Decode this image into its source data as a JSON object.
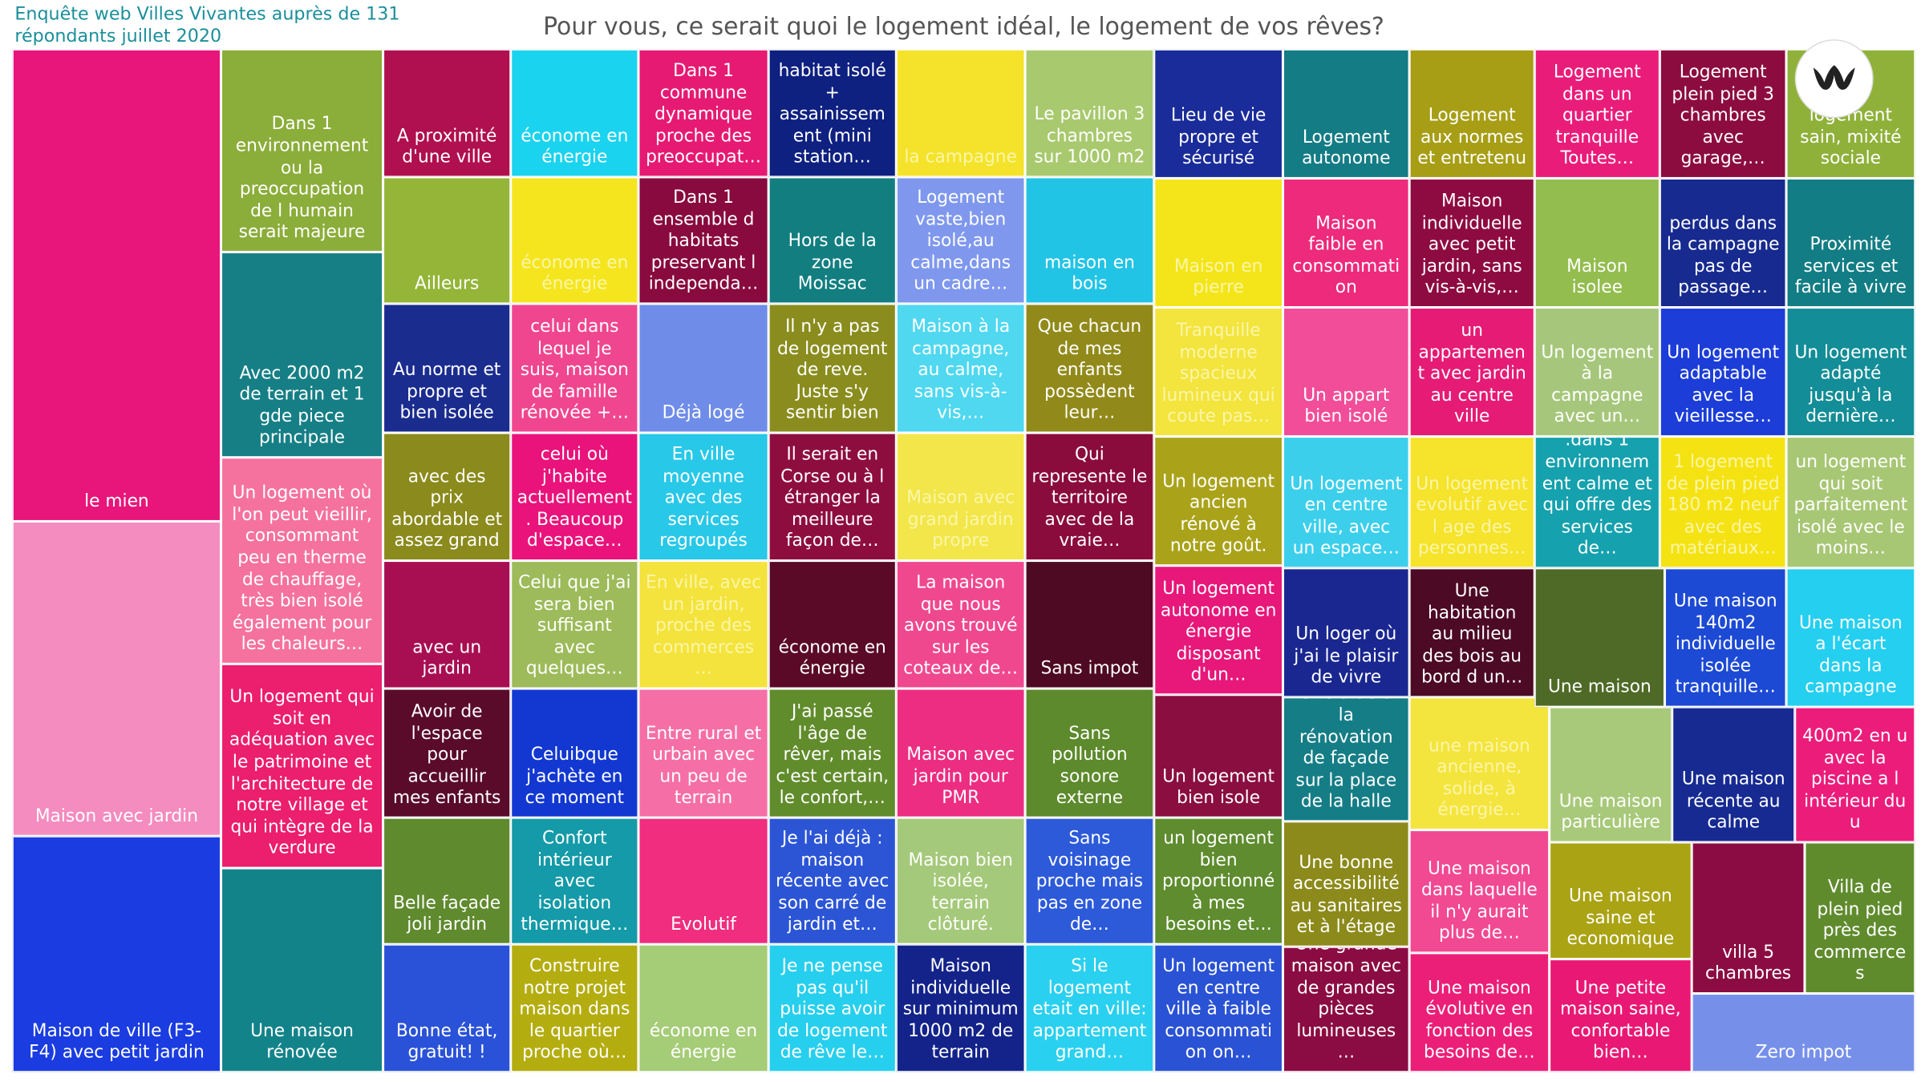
{
  "header": {
    "source": [
      "Enquête web Villes Vivantes auprès de 131",
      "répondants juillet 2020"
    ],
    "title": "Pour vous, ce serait quoi le logement idéal, le logement de vos rêves?"
  },
  "tiles": [
    {
      "label": "le mien",
      "color": "#e8157a"
    },
    {
      "label": "Maison avec jardin",
      "color": "#f48cc0"
    },
    {
      "label": "Maison de ville (F3-F4) avec petit jardin",
      "color": "#1a3ce0"
    },
    {
      "label": "Dans 1 environnement ou la preoccupation de l humain serait majeure",
      "color": "#8bad3a"
    },
    {
      "label": "Avec 2000 m2 de terrain  et 1 gde piece principale",
      "color": "#167f86"
    },
    {
      "label": "Un logement où l'on peut vieillir, consommant peu en therme de chauffage, très bien isolé également pour les chaleurs…",
      "color": "#f5729e"
    },
    {
      "label": "Un logement qui soit en adéquation avec le patrimoine et l'architecture de notre village et qui intègre de la verdure",
      "color": "#ec1e6e"
    },
    {
      "label": "Une maison rénovée",
      "color": "#13838a"
    },
    {
      "label": "A proximité d'une ville",
      "color": "#b0104f"
    },
    {
      "label": "Ailleurs",
      "color": "#94b538"
    },
    {
      "label": "Au norme et propre et bien isolée",
      "color": "#1b2c8f"
    },
    {
      "label": "avec des prix abordable et assez grand",
      "color": "#8b8a1c"
    },
    {
      "label": "avec un jardin",
      "color": "#a80e52"
    },
    {
      "label": "Avoir de l'espace pour accueillir mes enfants",
      "color": "#5a0b2a"
    },
    {
      "label": "Belle façade joli jardin",
      "color": "#5f8a2e"
    },
    {
      "label": "Bonne état, gratuit! !",
      "color": "#2a52d8"
    },
    {
      "label": "économe en énergie",
      "color": "#1ad3ef"
    },
    {
      "label": "économe en énergie",
      "color": "#f5e51e",
      "text_color": "#fbf6a8"
    },
    {
      "label": "celui dans lequel je suis, maison de famille rénovée +…",
      "color": "#f0468f"
    },
    {
      "label": "celui où j'habite actuellement . Beaucoup d'espace…",
      "color": "#e9137b"
    },
    {
      "label": "Celui que j'ai sera bien suffisant avec quelques…",
      "color": "#9dbb5a"
    },
    {
      "label": "Celuibque j'achète en ce moment",
      "color": "#1238d1"
    },
    {
      "label": "Confort intérieur avec isolation thermique…",
      "color": "#149aa8"
    },
    {
      "label": "Construire notre projet maison dans le quartier proche où…",
      "color": "#b4ad10"
    },
    {
      "label": "Dans 1 commune dynamique proche des preoccupat…",
      "color": "#e61a73"
    },
    {
      "label": "Dans 1 ensemble d habitats preservant l independa…",
      "color": "#880a3e"
    },
    {
      "label": "Déjà logé",
      "color": "#6f8de8"
    },
    {
      "label": "En ville moyenne avec des services regroupés",
      "color": "#28c8e8"
    },
    {
      "label": "En ville, avec un jardin, proche des commerces…",
      "color": "#f4e33c",
      "text_color": "#fbf6a8"
    },
    {
      "label": "Entre rural et urbain avec un peu de terrain",
      "color": "#f56fa6"
    },
    {
      "label": "Evolutif",
      "color": "#f02d7e"
    },
    {
      "label": "économe en énergie",
      "color": "#a5cc77"
    },
    {
      "label": "habitat isolé + assainissement (mini station…",
      "color": "#0e2080"
    },
    {
      "label": "Hors de la zone Moissac",
      "color": "#127e80"
    },
    {
      "label": "Il n'y a pas de logement de reve. Juste s'y sentir bien",
      "color": "#8a8d1e"
    },
    {
      "label": "Il serait en Corse ou à l étranger la meilleure façon de…",
      "color": "#8e0d3f"
    },
    {
      "label": "économe en énergie",
      "color": "#5a0a26"
    },
    {
      "label": "J'ai passé l'âge de rêver, mais c'est certain, le confort,…",
      "color": "#618c2c"
    },
    {
      "label": "Je l'ai déjà : maison récente avec son carré de jardin et…",
      "color": "#2c55d6"
    },
    {
      "label": "Je ne pense pas qu'il puisse avoir de logement de rêve le…",
      "color": "#27cfee"
    },
    {
      "label": "la campagne",
      "color": "#f4e32a",
      "text_color": "#fbf6a8"
    },
    {
      "label": "Logement vaste,bien isolé,au calme,dans un cadre…",
      "color": "#7f98ee"
    },
    {
      "label": "Maison à la campagne, au calme, sans vis-à-vis,…",
      "color": "#4fd8f0"
    },
    {
      "label": "Maison avec grand jardin propre",
      "color": "#f2e64a",
      "text_color": "#fbf6a8"
    },
    {
      "label": "La maison que nous avons trouvé sur les coteaux de…",
      "color": "#f0488f"
    },
    {
      "label": "Maison avec jardin pour PMR",
      "color": "#ec2d82"
    },
    {
      "label": "Maison bien isolée, terrain clôturé.",
      "color": "#a5c97a"
    },
    {
      "label": "Maison individuelle sur minimum 1000 m2 de terrain",
      "color": "#13238a"
    },
    {
      "label": "Le pavillon 3 chambres sur 1000 m2",
      "color": "#a8c96e"
    },
    {
      "label": "maison en bois",
      "color": "#22c4e6"
    },
    {
      "label": "Que chacun de mes enfants possèdent leur…",
      "color": "#918a1a"
    },
    {
      "label": "Qui represente le territoire avec de la vraie…",
      "color": "#8a0c3c"
    },
    {
      "label": "Sans impot",
      "color": "#4e0a22"
    },
    {
      "label": "Sans pollution sonore externe",
      "color": "#5d8a2c"
    },
    {
      "label": "Sans voisinage proche mais pas en zone de…",
      "color": "#2d5ad9"
    },
    {
      "label": "Si le logement etait en ville: appartement grand…",
      "color": "#2ad0ef"
    },
    {
      "label": "Lieu de vie propre et sécurisé",
      "color": "#1a2c9a"
    },
    {
      "label": "Maison en pierre",
      "color": "#f4e51a",
      "text_color": "#fbf6a8"
    },
    {
      "label": "Tranquille moderne spacieux lumineux qui coute pas…",
      "color": "#f3e43e",
      "text_color": "#fbf6a8"
    },
    {
      "label": "Un logement ancien rénové à notre goût.",
      "color": "#aaa31a"
    },
    {
      "label": "Un logement autonome en énergie disposant d'un…",
      "color": "#e8177a"
    },
    {
      "label": "Un logement bien isole",
      "color": "#8a0e40"
    },
    {
      "label": "un logement bien proportionné à mes besoins et…",
      "color": "#5e8c2e"
    },
    {
      "label": "Un logement en centre ville à faible consommation on…",
      "color": "#2a52d4"
    },
    {
      "label": "Logement autonome",
      "color": "#147c85"
    },
    {
      "label": "Maison faible en consommation",
      "color": "#ee2a7c"
    },
    {
      "label": "Un appart bien isolé",
      "color": "#f24d98"
    },
    {
      "label": "Un logement en centre ville, avec un espace…",
      "color": "#3ccfec"
    },
    {
      "label": "Un loger où j'ai le plaisir de vivre",
      "color": "#1a2790"
    },
    {
      "label": "Une aide à la rénovation de façade sur la place de la halle",
      "color": "#157d86"
    },
    {
      "label": "Une bonne accessibilité au sanitaires et à l'étage",
      "color": "#8c8a1a"
    },
    {
      "label": "Une grande maison avec de grandes pièces lumineuses…",
      "color": "#8b0c42"
    },
    {
      "label": "Logement aux normes et entretenu",
      "color": "#a79e16"
    },
    {
      "label": "Maison individuelle avec petit jardin, sans vis-à-vis,…",
      "color": "#8e0b42"
    },
    {
      "label": "un appartement avec jardin au centre ville",
      "color": "#e51b75"
    },
    {
      "label": "Un logement evolutif avec l age des personnes…",
      "color": "#f5e32c",
      "text_color": "#fbf6a8"
    },
    {
      "label": "Une habitation au milieu des bois au bord d un…",
      "color": "#4c0a24"
    },
    {
      "label": "une maison ancienne, solide, à énergie…",
      "color": "#f4e43e",
      "text_color": "#fbf6a8"
    },
    {
      "label": "Une maison dans laquelle il n'y aurait plus de…",
      "color": "#f24993"
    },
    {
      "label": "Une maison évolutive en fonction des besoins de…",
      "color": "#ec1f78"
    },
    {
      "label": "Logement dans un quartier tranquille Toutes…",
      "color": "#ea1c7a"
    },
    {
      "label": "Maison isolee",
      "color": "#93bd4e"
    },
    {
      "label": "Un logement à la campagne avec un…",
      "color": "#a6c77b"
    },
    {
      "label": ".dans 1 environnement calme et qui offre des services de…",
      "color": "#15a1ae"
    },
    {
      "label": "Une maison",
      "color": "#4e6a26"
    },
    {
      "label": "Une maison particulière",
      "color": "#a8c97a"
    },
    {
      "label": "Une maison saine et economique",
      "color": "#aaa314"
    },
    {
      "label": "Une petite maison saine, confortable bien…",
      "color": "#e91874"
    },
    {
      "label": "Logement plein pied 3 chambres avec garage,…",
      "color": "#8c0c3f"
    },
    {
      "label": "perdus dans la campagne pas de passage…",
      "color": "#172a8f"
    },
    {
      "label": "Un logement adaptable avec la vieillesse…",
      "color": "#1c3dd8"
    },
    {
      "label": "1 logement de plein pied 180 m2 neuf avec des matériaux…",
      "color": "#f5e212",
      "text_color": "#fbf6a8"
    },
    {
      "label": "Une maison 140m2 individuelle isolée tranquille…",
      "color": "#1d4ad4"
    },
    {
      "label": "Une maison récente au calme",
      "color": "#162a92"
    },
    {
      "label": "villa 5 chambres",
      "color": "#8b0c43"
    },
    {
      "label": "Zero impot",
      "color": "#7690ea"
    },
    {
      "label": "logement sain, mixité sociale",
      "color": "#8fb13a"
    },
    {
      "label": "Proximité services et facile à vivre",
      "color": "#127d84"
    },
    {
      "label": "Un logement adapté jusqu'à la dernière…",
      "color": "#138d97"
    },
    {
      "label": "un logement qui soit parfaitement isolé avec le moins…",
      "color": "#a8c775"
    },
    {
      "label": "Une maison a l'écart dans la campagne",
      "color": "#25cff0"
    },
    {
      "label": "400m2 en u avec la piscine a l intérieur du u",
      "color": "#ec1c7b"
    },
    {
      "label": "Villa de plein pied près des commerce s",
      "color": "#5f8b2d"
    }
  ]
}
